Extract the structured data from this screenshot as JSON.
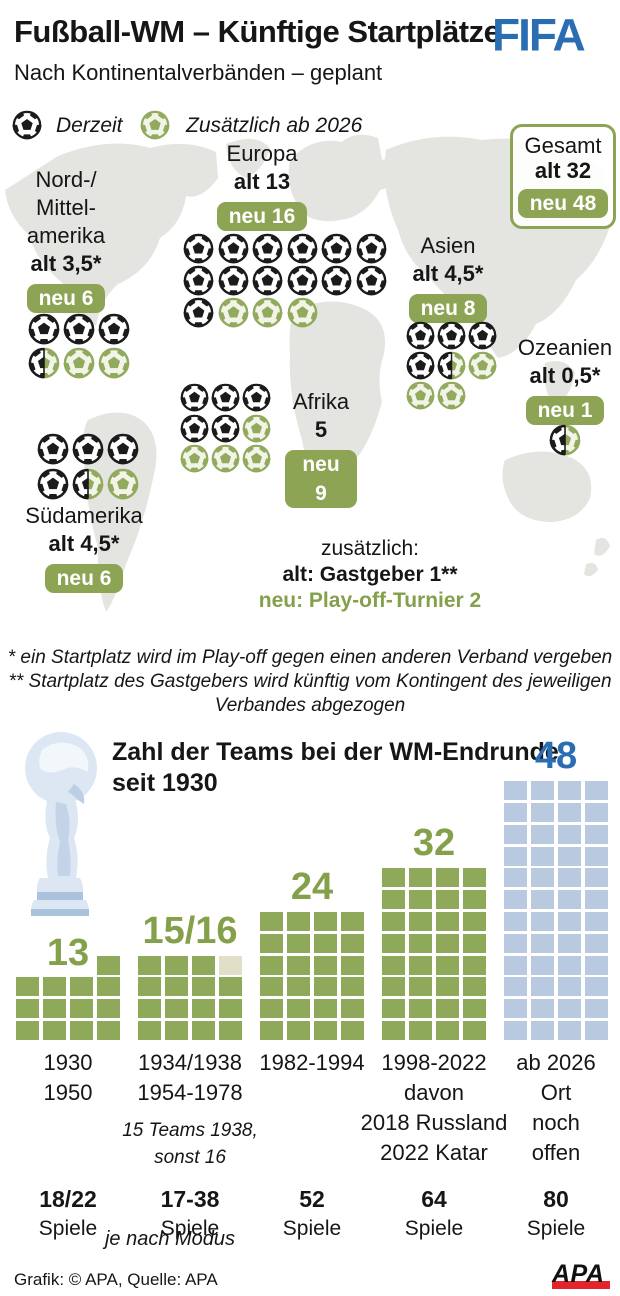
{
  "header": {
    "title": "Fußball-WM – Künftige Startplätze",
    "subtitle": "Nach Kontinentalverbänden – geplant",
    "logo": "FIFA"
  },
  "legend": {
    "current": "Derzeit",
    "additional": "Zusätzlich ab 2026"
  },
  "total_box": {
    "label": "Gesamt",
    "alt": "alt 32",
    "neu": "neu 48"
  },
  "confederations": [
    {
      "id": "nordmittelamerika",
      "name_lines": [
        "Nord-/",
        "Mittel-",
        "amerika"
      ],
      "alt": "alt 3,5*",
      "neu": "neu 6",
      "balls": [
        [
          "current",
          "current",
          "current"
        ],
        [
          "half",
          "new",
          "new"
        ]
      ]
    },
    {
      "id": "europa",
      "name_lines": [
        "Europa"
      ],
      "alt": "alt 13",
      "neu": "neu 16",
      "balls": [
        [
          "current",
          "current",
          "current",
          "current",
          "current",
          "current"
        ],
        [
          "current",
          "current",
          "current",
          "current",
          "current",
          "current"
        ],
        [
          "current",
          "new",
          "new",
          "new"
        ]
      ]
    },
    {
      "id": "asien",
      "name_lines": [
        "Asien"
      ],
      "alt": "alt 4,5*",
      "neu": "neu 8",
      "balls": [
        [
          "current",
          "current",
          "current"
        ],
        [
          "current",
          "half",
          "new"
        ],
        [
          "new",
          "new"
        ]
      ]
    },
    {
      "id": "ozeanien",
      "name_lines": [
        "Ozeanien"
      ],
      "alt": "alt 0,5*",
      "neu": "neu 1",
      "balls": [
        [
          "half"
        ]
      ]
    },
    {
      "id": "afrika",
      "name_lines": [
        "Afrika"
      ],
      "alt": "5",
      "neu": "neu 9",
      "balls": [
        [
          "current",
          "current",
          "current"
        ],
        [
          "current",
          "current",
          "new"
        ],
        [
          "new",
          "new",
          "new"
        ]
      ]
    },
    {
      "id": "suedamerika",
      "name_lines": [
        "Südamerika"
      ],
      "alt": "alt 4,5*",
      "neu": "neu 6",
      "balls": [
        [
          "current",
          "current",
          "current"
        ],
        [
          "current",
          "half",
          "new"
        ]
      ]
    }
  ],
  "additional_note": {
    "line1": "zusätzlich:",
    "line2": "alt: Gastgeber 1**",
    "line3": "neu: Play-off-Turnier 2"
  },
  "footnotes": [
    "* ein  Startplatz wird im Play-off gegen einen anderen Verband vergeben",
    "** Startplatz des Gastgebers wird künftig vom Kontingent des jeweiligen",
    "Verbandes abgezogen"
  ],
  "chart_data": {
    "type": "bar",
    "variant": "waffle",
    "title_lines": [
      "Zahl der Teams bei der WM-Endrunde",
      "seit 1930"
    ],
    "grid_columns": 4,
    "columns": [
      {
        "teams_label": "13",
        "teams": 13,
        "color": "green",
        "periods": [
          "1930",
          "1950"
        ],
        "note": [],
        "games": "18/22",
        "games_unit": "Spiele"
      },
      {
        "teams_label": "15/16",
        "teams": 16,
        "color": "green",
        "last_square": "beige",
        "periods": [
          "1934/1938",
          "1954-1978"
        ],
        "note": [
          "15 Teams 1938,",
          "sonst 16"
        ],
        "games": "17-38",
        "games_unit": "Spiele"
      },
      {
        "teams_label": "24",
        "teams": 24,
        "color": "green",
        "periods": [
          "1982-1994"
        ],
        "note": [],
        "games": "52",
        "games_unit": "Spiele"
      },
      {
        "teams_label": "32",
        "teams": 32,
        "color": "green",
        "periods": [
          "1998-2022",
          "davon",
          "2018 Russland",
          "2022 Katar"
        ],
        "note": [],
        "games": "64",
        "games_unit": "Spiele"
      },
      {
        "teams_label": "48",
        "teams": 48,
        "color": "blue",
        "periods": [
          "ab 2026",
          "Ort",
          "noch",
          "offen"
        ],
        "note": [],
        "games": "80",
        "games_unit": "Spiele"
      }
    ],
    "modus_note": "je nach Modus"
  },
  "footer": {
    "credit": "Grafik: © APA, Quelle: APA",
    "logo": "APA"
  },
  "colors": {
    "green": "#8ca454",
    "green_text": "#84a04b",
    "square_green": "#8fa95a",
    "square_blue": "#b9c9df",
    "square_beige": "#e2dfc8",
    "blue": "#2a6db3",
    "ball_black": "#1b1b1b",
    "ball_green": "#92aa5e",
    "ball_green_bg": "#f1f4e7",
    "map_grey": "#e4e4e0"
  }
}
